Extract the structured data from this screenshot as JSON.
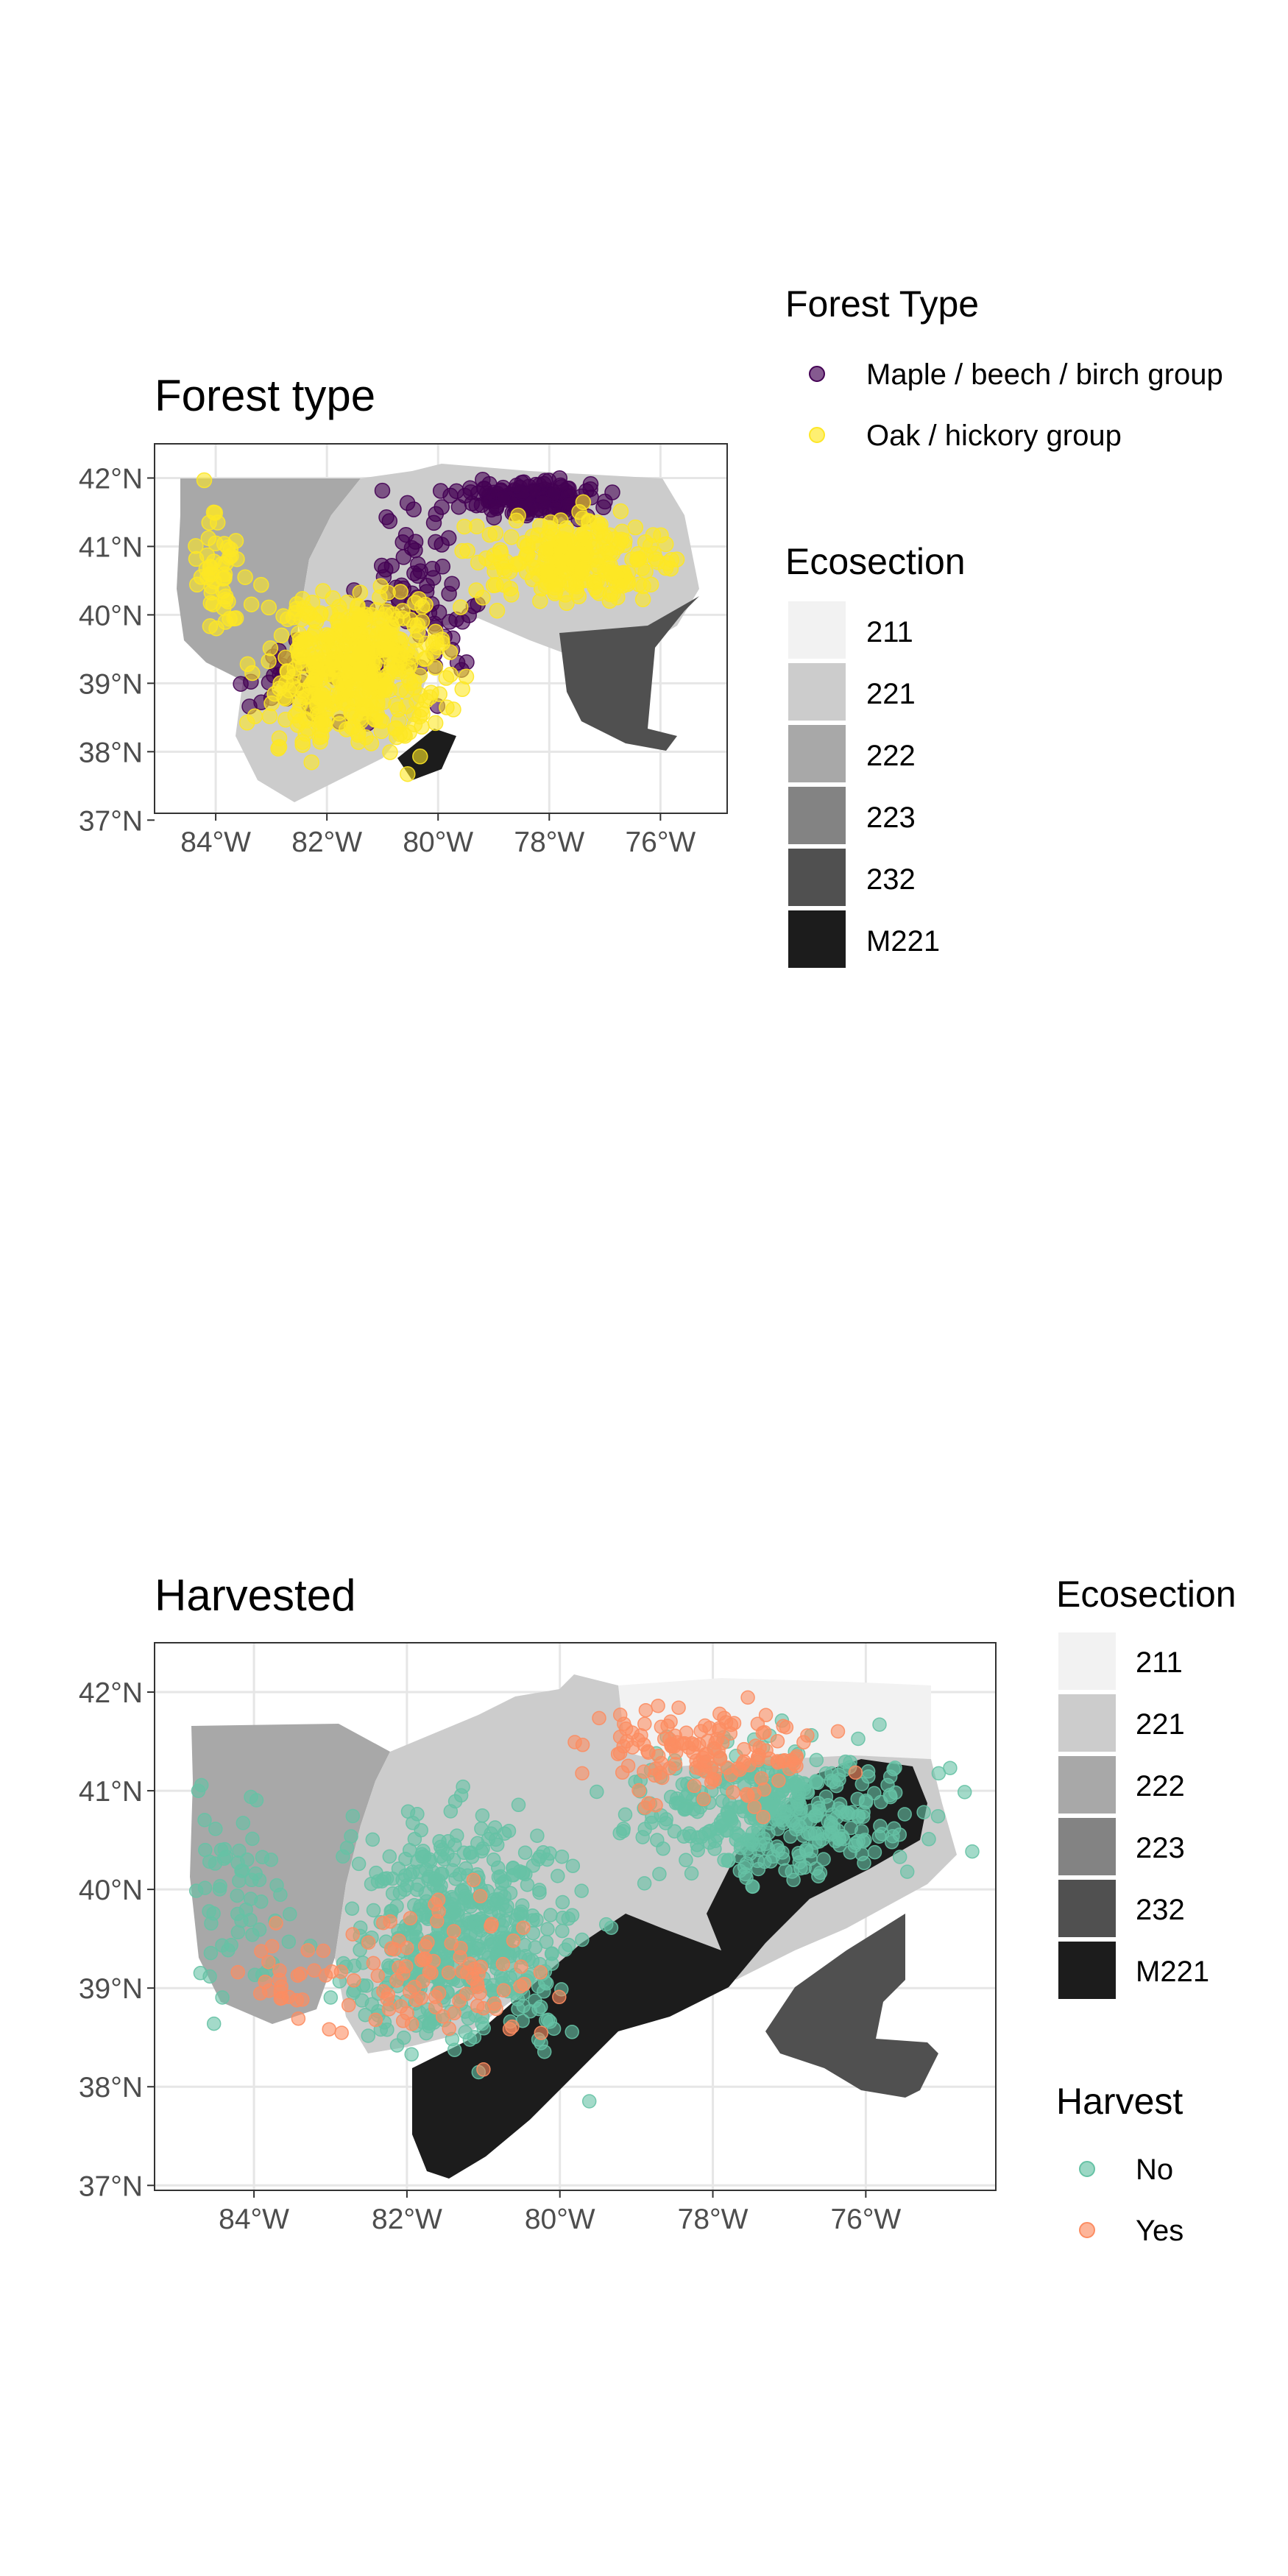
{
  "panel_a": {
    "title": "Forest type",
    "forest_legend": {
      "title": "Forest Type",
      "items": [
        {
          "label": "Maple / beech / birch group",
          "color": "#440154"
        },
        {
          "label": "Oak / hickory group",
          "color": "#FDE725"
        }
      ]
    },
    "eco_legend": {
      "title": "Ecosection",
      "items": [
        {
          "label": "211",
          "color": "#f2f2f2"
        },
        {
          "label": "221",
          "color": "#cccccc"
        },
        {
          "label": "222",
          "color": "#a8a8a8"
        },
        {
          "label": "223",
          "color": "#838383"
        },
        {
          "label": "232",
          "color": "#505050"
        },
        {
          "label": "M221",
          "color": "#1c1c1c"
        }
      ]
    }
  },
  "panel_b": {
    "title": "Harvested",
    "eco_legend": {
      "title": "Ecosection",
      "items": [
        {
          "label": "211",
          "color": "#f2f2f2"
        },
        {
          "label": "221",
          "color": "#cccccc"
        },
        {
          "label": "222",
          "color": "#a8a8a8"
        },
        {
          "label": "223",
          "color": "#838383"
        },
        {
          "label": "232",
          "color": "#505050"
        },
        {
          "label": "M221",
          "color": "#1c1c1c"
        }
      ]
    },
    "harvest_legend": {
      "title": "Harvest",
      "items": [
        {
          "label": "No",
          "color": "#66C2A5"
        },
        {
          "label": "Yes",
          "color": "#FC8D62"
        }
      ]
    }
  },
  "axes": {
    "lon_ticks": [
      "84°W",
      "82°W",
      "80°W",
      "78°W",
      "76°W"
    ],
    "lat_ticks": [
      "42°N",
      "41°N",
      "40°N",
      "39°N",
      "38°N",
      "37°N"
    ]
  },
  "chart_data": [
    {
      "type": "scatter",
      "title": "Forest type",
      "x_range": [
        -85.1,
        -74.8
      ],
      "y_range": [
        37.1,
        42.5
      ],
      "groups": [
        "Maple / beech / birch group",
        "Oak / hickory group"
      ],
      "clusters": [
        {
          "group": "Maple / beech / birch group",
          "lon": -78.3,
          "lat": 41.7,
          "spread": [
            1.3,
            0.25
          ],
          "n": 160
        },
        {
          "group": "Maple / beech / birch group",
          "lon": -80.3,
          "lat": 40.2,
          "spread": [
            1.0,
            1.3
          ],
          "n": 80
        },
        {
          "group": "Maple / beech / birch group",
          "lon": -82.5,
          "lat": 39.0,
          "spread": [
            1.2,
            0.6
          ],
          "n": 35
        },
        {
          "group": "Oak / hickory group",
          "lon": -81.5,
          "lat": 39.2,
          "spread": [
            1.6,
            1.2
          ],
          "n": 450
        },
        {
          "group": "Oak / hickory group",
          "lon": -77.5,
          "lat": 40.8,
          "spread": [
            1.7,
            0.6
          ],
          "n": 260
        },
        {
          "group": "Oak / hickory group",
          "lon": -84.0,
          "lat": 40.6,
          "spread": [
            0.6,
            1.0
          ],
          "n": 50
        }
      ]
    },
    {
      "type": "scatter",
      "title": "Harvested",
      "x_range": [
        -85.3,
        -74.3
      ],
      "y_range": [
        36.95,
        42.5
      ],
      "groups": [
        "No",
        "Yes"
      ],
      "clusters": [
        {
          "group": "No",
          "lon": -81.3,
          "lat": 39.6,
          "spread": [
            1.5,
            1.2
          ],
          "n": 520
        },
        {
          "group": "No",
          "lon": -77.2,
          "lat": 40.8,
          "spread": [
            1.8,
            0.7
          ],
          "n": 380
        },
        {
          "group": "No",
          "lon": -84.2,
          "lat": 40.0,
          "spread": [
            0.6,
            1.1
          ],
          "n": 60
        },
        {
          "group": "Yes",
          "lon": -78.0,
          "lat": 41.4,
          "spread": [
            1.6,
            0.5
          ],
          "n": 140
        },
        {
          "group": "Yes",
          "lon": -81.5,
          "lat": 39.2,
          "spread": [
            1.3,
            0.9
          ],
          "n": 90
        },
        {
          "group": "Yes",
          "lon": -83.6,
          "lat": 39.0,
          "spread": [
            0.8,
            0.5
          ],
          "n": 25
        }
      ]
    }
  ]
}
